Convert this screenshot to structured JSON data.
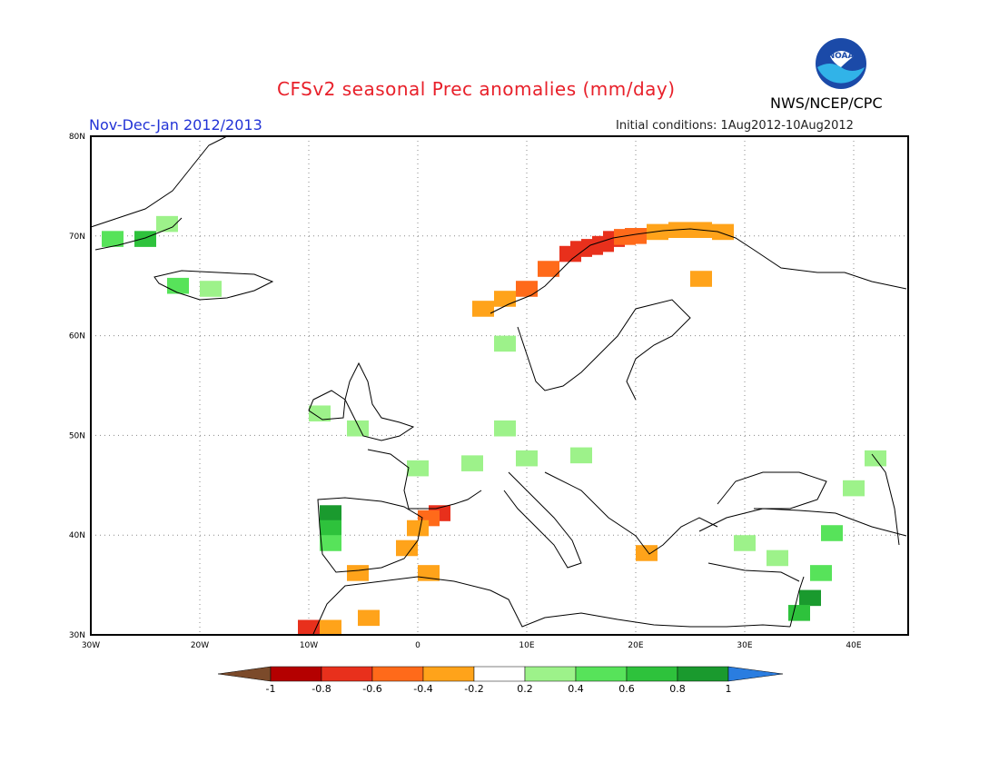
{
  "title": "CFSv2 seasonal Prec anomalies (mm/day)",
  "season_label": "Nov-Dec-Jan 2012/2013",
  "initial_conditions": "Initial conditions: 1Aug2012-10Aug2012",
  "agency": "NWS/NCEP/CPC",
  "logo_text": "NOAA",
  "map": {
    "lon_range": [
      -30,
      45
    ],
    "lat_range": [
      30,
      80
    ],
    "lon_tick_labels": [
      "30W",
      "20W",
      "10W",
      "0",
      "10E",
      "20E",
      "30E",
      "40E"
    ],
    "lat_tick_labels": [
      "30N",
      "40N",
      "50N",
      "60N",
      "70N",
      "80N"
    ],
    "grid": "dotted",
    "region": "Europe, North Atlantic, Mediterranean"
  },
  "colorbar": {
    "labels": [
      "-1",
      "-0.8",
      "-0.6",
      "-0.4",
      "-0.2",
      "0.2",
      "0.4",
      "0.6",
      "0.8",
      "1"
    ],
    "colors": [
      "#7b4a2a",
      "#b40000",
      "#e8301c",
      "#ff6a1a",
      "#ffa31a",
      "#ffffff",
      "#9df28a",
      "#57e35a",
      "#2ec23c",
      "#1a9a2e",
      "#2a7de0"
    ]
  },
  "anomalies": [
    {
      "lon": 14,
      "lat": 68,
      "value": -0.6
    },
    {
      "lon": 15,
      "lat": 68.5,
      "value": -0.6
    },
    {
      "lon": 16,
      "lat": 68.7,
      "value": -0.7
    },
    {
      "lon": 17,
      "lat": 69,
      "value": -0.6
    },
    {
      "lon": 18,
      "lat": 69.5,
      "value": -0.6
    },
    {
      "lon": 19,
      "lat": 69.7,
      "value": -0.5
    },
    {
      "lon": 20,
      "lat": 69.8,
      "value": -0.4
    },
    {
      "lon": 22,
      "lat": 70.2,
      "value": -0.3
    },
    {
      "lon": 24,
      "lat": 70.4,
      "value": -0.3
    },
    {
      "lon": 26,
      "lat": 70.4,
      "value": -0.3
    },
    {
      "lon": 28,
      "lat": 70.2,
      "value": -0.3
    },
    {
      "lon": 12,
      "lat": 66.5,
      "value": -0.4
    },
    {
      "lon": 10,
      "lat": 64.5,
      "value": -0.4
    },
    {
      "lon": 8,
      "lat": 63.5,
      "value": -0.3
    },
    {
      "lon": 6,
      "lat": 62.5,
      "value": -0.3
    },
    {
      "lon": 26,
      "lat": 65.5,
      "value": -0.3
    },
    {
      "lon": 2,
      "lat": 42,
      "value": -0.6
    },
    {
      "lon": 1,
      "lat": 41.5,
      "value": -0.4
    },
    {
      "lon": 0,
      "lat": 40.5,
      "value": -0.3
    },
    {
      "lon": -1,
      "lat": 38.5,
      "value": -0.3
    },
    {
      "lon": -5.5,
      "lat": 36,
      "value": -0.3
    },
    {
      "lon": 1,
      "lat": 36,
      "value": -0.3
    },
    {
      "lon": -10,
      "lat": 30.5,
      "value": -0.6
    },
    {
      "lon": -8,
      "lat": 30.5,
      "value": -0.3
    },
    {
      "lon": -4.5,
      "lat": 31.5,
      "value": -0.3
    },
    {
      "lon": 21,
      "lat": 38,
      "value": -0.3
    },
    {
      "lon": -28,
      "lat": 69.5,
      "value": 0.4
    },
    {
      "lon": -25,
      "lat": 69.5,
      "value": 0.6
    },
    {
      "lon": -23,
      "lat": 71,
      "value": 0.3
    },
    {
      "lon": -22,
      "lat": 64.8,
      "value": 0.4
    },
    {
      "lon": -19,
      "lat": 64.5,
      "value": 0.3
    },
    {
      "lon": 8,
      "lat": 59,
      "value": 0.3
    },
    {
      "lon": -9,
      "lat": 52,
      "value": 0.3
    },
    {
      "lon": -5.5,
      "lat": 50.5,
      "value": 0.3
    },
    {
      "lon": 0,
      "lat": 46.5,
      "value": 0.3
    },
    {
      "lon": 5,
      "lat": 47,
      "value": 0.3
    },
    {
      "lon": 10,
      "lat": 47.5,
      "value": 0.3
    },
    {
      "lon": 15,
      "lat": 47.8,
      "value": 0.3
    },
    {
      "lon": 8,
      "lat": 50.5,
      "value": 0.3
    },
    {
      "lon": -8,
      "lat": 42,
      "value": 0.8
    },
    {
      "lon": -8,
      "lat": 40.5,
      "value": 0.6
    },
    {
      "lon": -8,
      "lat": 39,
      "value": 0.4
    },
    {
      "lon": 36,
      "lat": 33.5,
      "value": 0.8
    },
    {
      "lon": 35,
      "lat": 32,
      "value": 0.6
    },
    {
      "lon": 37,
      "lat": 36,
      "value": 0.5
    },
    {
      "lon": 33,
      "lat": 37.5,
      "value": 0.3
    },
    {
      "lon": 30,
      "lat": 39,
      "value": 0.3
    },
    {
      "lon": 42,
      "lat": 47.5,
      "value": 0.3
    },
    {
      "lon": 40,
      "lat": 44.5,
      "value": 0.3
    },
    {
      "lon": 38,
      "lat": 40,
      "value": 0.4
    }
  ]
}
